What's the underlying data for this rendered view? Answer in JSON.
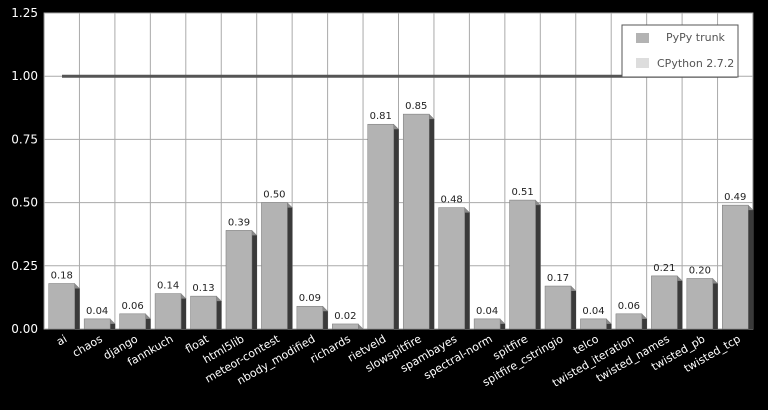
{
  "chart_data": {
    "type": "bar",
    "title": "",
    "xlabel": "",
    "ylabel": "",
    "ylim": [
      0,
      1.25
    ],
    "yticks": [
      "0.00",
      "0.25",
      "0.50",
      "0.75",
      "1.00",
      "1.25"
    ],
    "grid": true,
    "legend_position": "top-right",
    "categories": [
      "ai",
      "chaos",
      "django",
      "fannkuch",
      "float",
      "html5lib",
      "meteor-contest",
      "nbody_modified",
      "richards",
      "rietveld",
      "slowspitfire",
      "spambayes",
      "spectral-norm",
      "spitfire",
      "spitfire_cstringio",
      "telco",
      "twisted_iteration",
      "twisted_names",
      "twisted_pb",
      "twisted_tcp"
    ],
    "series": [
      {
        "name": "PyPy trunk",
        "color": "#b3b3b3",
        "values": [
          0.18,
          0.04,
          0.06,
          0.14,
          0.13,
          0.39,
          0.5,
          0.09,
          0.02,
          0.81,
          0.85,
          0.48,
          0.04,
          0.51,
          0.17,
          0.04,
          0.06,
          0.21,
          0.2,
          0.49
        ],
        "labels": [
          "0.18",
          "0.04",
          "0.06",
          "0.14",
          "0.13",
          "0.39",
          "0.50",
          "0.09",
          "0.02",
          "0.81",
          "0.85",
          "0.48",
          "0.04",
          "0.51",
          "0.17",
          "0.04",
          "0.06",
          "0.21",
          "0.20",
          "0.49"
        ]
      },
      {
        "name": "CPython 2.7.2",
        "color": "#555555",
        "type": "line",
        "value": 1.0
      }
    ]
  }
}
